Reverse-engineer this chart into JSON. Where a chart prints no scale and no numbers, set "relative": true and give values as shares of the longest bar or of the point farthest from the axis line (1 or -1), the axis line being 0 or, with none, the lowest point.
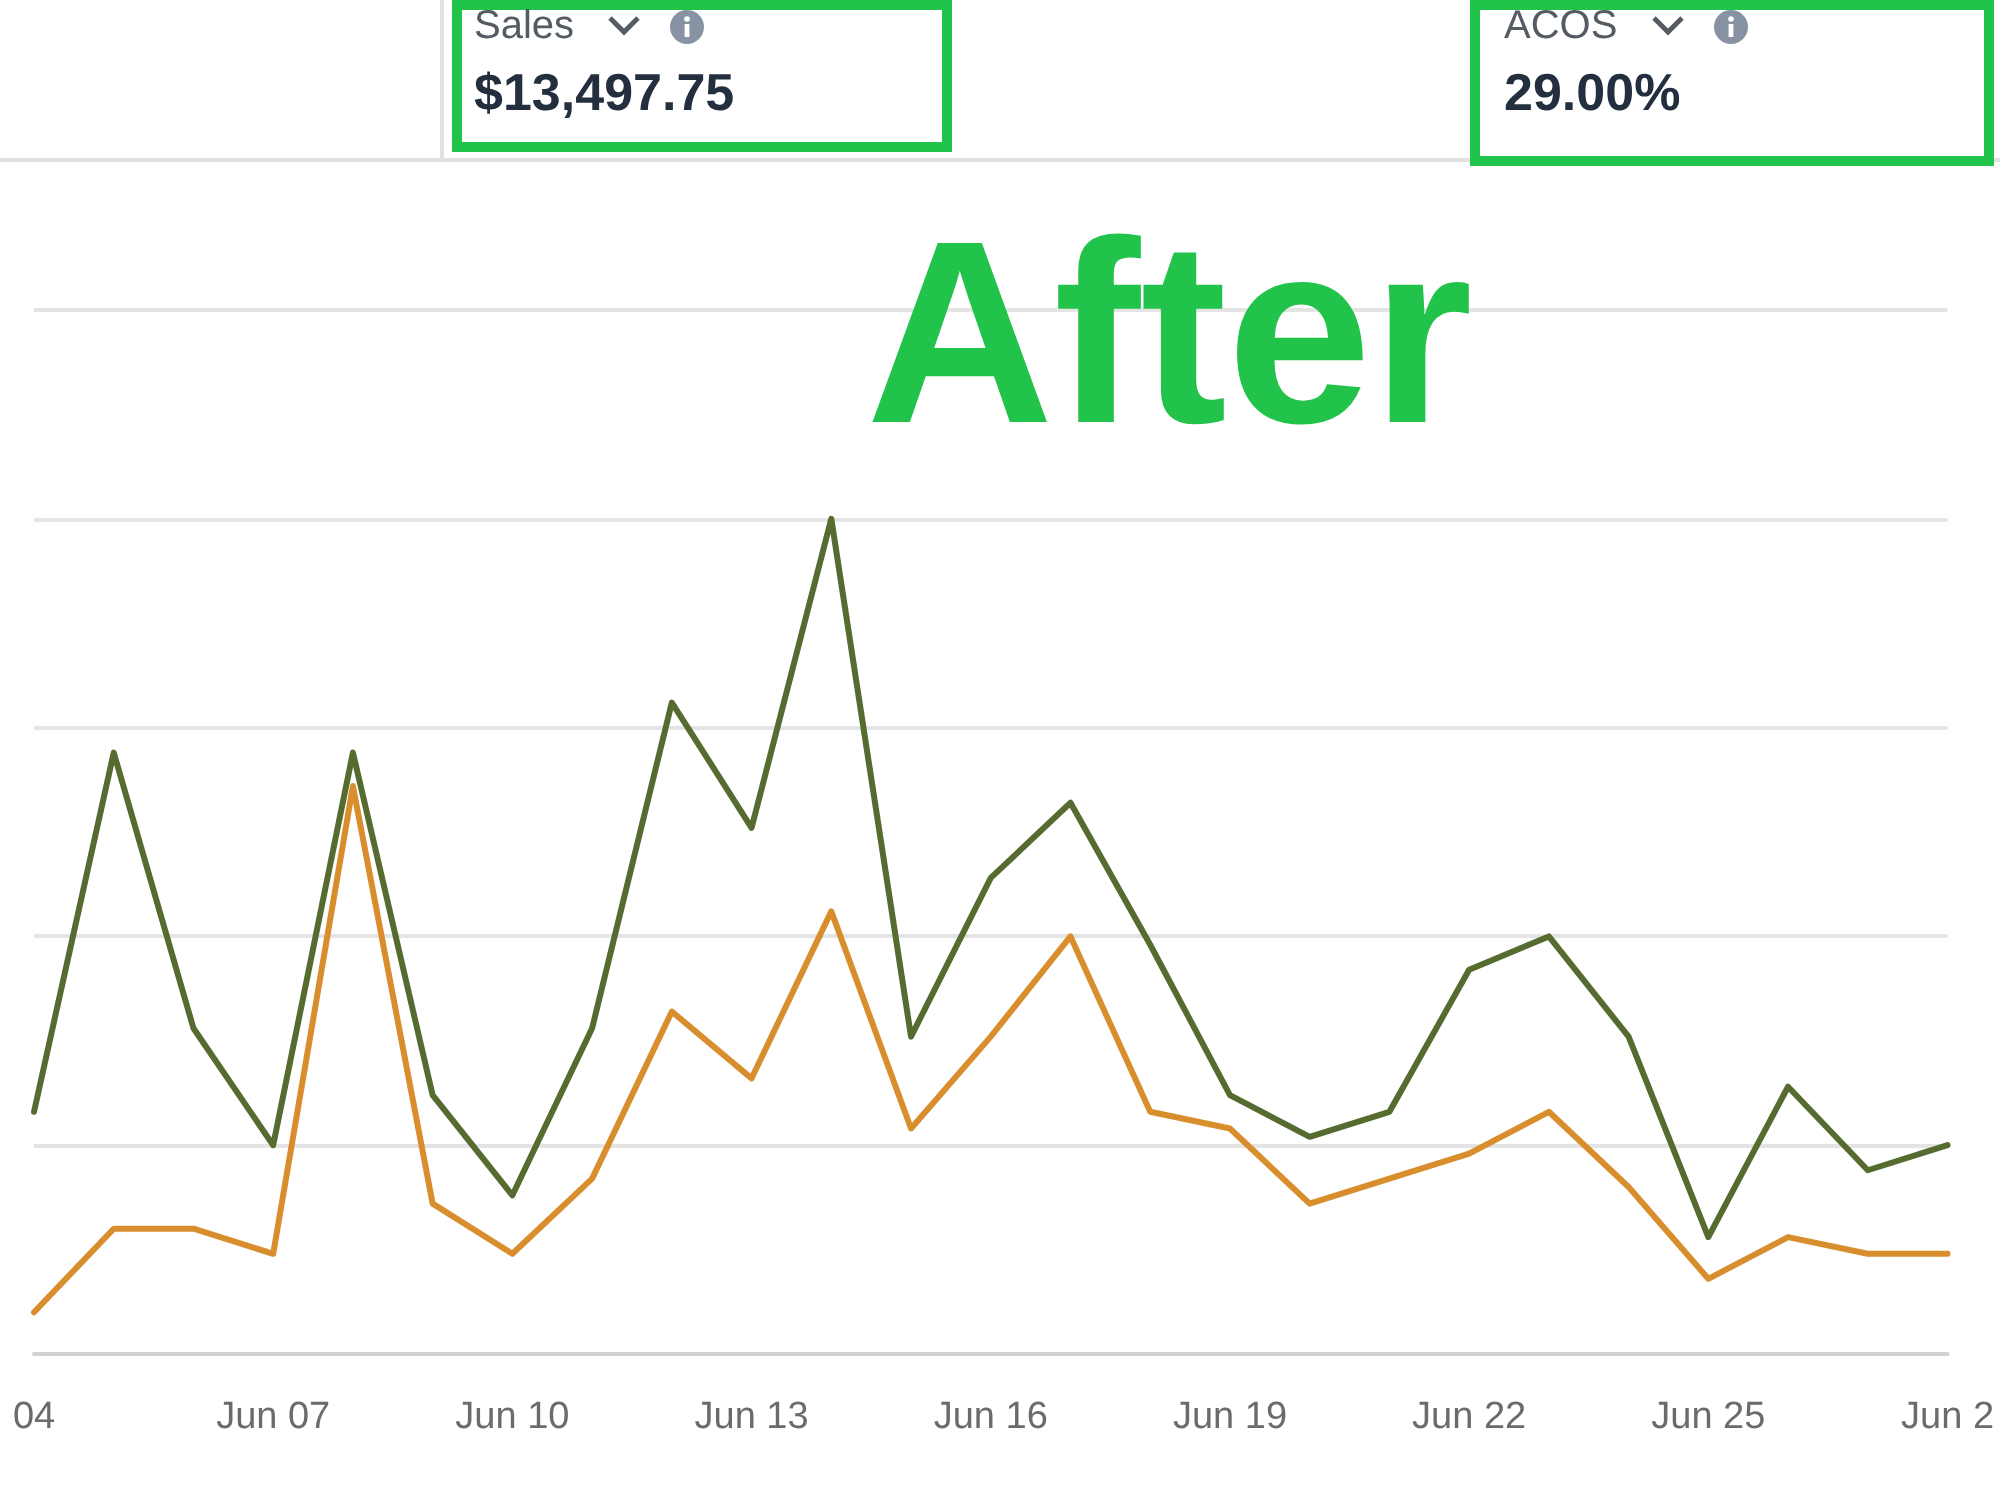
{
  "chart_data": {
    "type": "line",
    "title": "After",
    "annotations": [
      "Sales",
      "$13,497.75",
      "ACOS",
      "29.00%"
    ],
    "categories": [
      "04",
      null,
      null,
      "Jun 07",
      null,
      null,
      "Jun 10",
      null,
      null,
      "Jun 13",
      null,
      null,
      "Jun 16",
      null,
      null,
      "Jun 19",
      null,
      null,
      "Jun 22",
      null,
      null,
      "Jun 25",
      null,
      null,
      "Jun 2"
    ],
    "series": [
      {
        "color": "#566b30",
        "values": [
          0.29,
          0.72,
          0.39,
          0.25,
          0.72,
          0.31,
          0.19,
          0.39,
          0.78,
          0.63,
          1,
          0.38,
          0.57,
          0.66,
          0.49,
          0.31,
          0.26,
          0.29,
          0.46,
          0.5,
          0.38,
          0.14,
          0.32,
          0.22,
          0.25
        ]
      },
      {
        "color": "#d98e2e",
        "values": [
          0.05,
          0.15,
          0.15,
          0.12,
          0.68,
          0.18,
          0.12,
          0.21,
          0.41,
          0.33,
          0.53,
          0.27,
          0.38,
          0.5,
          0.29,
          0.27,
          0.18,
          0.21,
          0.24,
          0.29,
          0.2,
          0.09,
          0.14,
          0.12,
          0.12
        ]
      }
    ],
    "relative": true,
    "grid": "y",
    "tick_labels": "x",
    "marker": "none"
  }
}
